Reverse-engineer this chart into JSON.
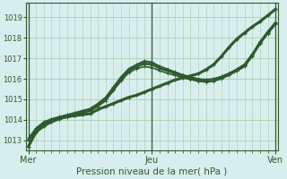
{
  "bg_color": "#d8eeee",
  "grid_color": "#aaccaa",
  "line_color": "#2d5a2d",
  "title": "Pression niveau de la mer( hPa )",
  "xlabel_day_labels": [
    "Mer",
    "Jeu",
    "Ven"
  ],
  "xlabel_day_positions": [
    0,
    48,
    96
  ],
  "xlim": [
    -1,
    97
  ],
  "ylim": [
    1012.5,
    1019.7
  ],
  "yticks": [
    1013,
    1014,
    1015,
    1016,
    1017,
    1018,
    1019
  ],
  "series": [
    {
      "x": [
        0,
        3,
        6,
        9,
        12,
        15,
        18,
        21,
        24,
        27,
        30,
        33,
        36,
        39,
        42,
        45,
        48,
        51,
        54,
        57,
        60,
        63,
        66,
        69,
        72,
        75,
        78,
        81,
        84,
        87,
        90,
        93,
        96
      ],
      "y": [
        1012.7,
        1013.4,
        1013.7,
        1013.9,
        1014.05,
        1014.15,
        1014.2,
        1014.25,
        1014.3,
        1014.5,
        1014.65,
        1014.8,
        1014.95,
        1015.1,
        1015.2,
        1015.35,
        1015.5,
        1015.65,
        1015.8,
        1015.95,
        1016.05,
        1016.15,
        1016.25,
        1016.45,
        1016.7,
        1017.1,
        1017.55,
        1017.95,
        1018.25,
        1018.55,
        1018.8,
        1019.1,
        1019.4
      ],
      "lw": 2.2,
      "marker": true
    },
    {
      "x": [
        0,
        3,
        6,
        9,
        12,
        15,
        18,
        21,
        24,
        27,
        30,
        33,
        36,
        39,
        42,
        45,
        48,
        51,
        54,
        57,
        60,
        63,
        66,
        69,
        72,
        75,
        78,
        81,
        84,
        87,
        90,
        93,
        96
      ],
      "y": [
        1013.0,
        1013.55,
        1013.85,
        1014.0,
        1014.1,
        1014.2,
        1014.3,
        1014.4,
        1014.5,
        1014.75,
        1015.05,
        1015.55,
        1016.05,
        1016.45,
        1016.65,
        1016.8,
        1016.75,
        1016.55,
        1016.42,
        1016.3,
        1016.18,
        1016.08,
        1015.98,
        1015.95,
        1016.0,
        1016.1,
        1016.25,
        1016.45,
        1016.7,
        1017.2,
        1017.8,
        1018.3,
        1018.75
      ],
      "lw": 1.2,
      "marker": true
    },
    {
      "x": [
        0,
        3,
        6,
        9,
        12,
        15,
        18,
        21,
        24,
        27,
        30,
        33,
        36,
        39,
        42,
        45,
        48,
        51,
        54,
        57,
        60,
        63,
        66,
        69,
        72,
        75,
        78,
        81,
        84,
        87,
        90,
        93,
        96
      ],
      "y": [
        1013.1,
        1013.6,
        1013.9,
        1014.05,
        1014.15,
        1014.25,
        1014.35,
        1014.45,
        1014.55,
        1014.8,
        1015.1,
        1015.6,
        1016.1,
        1016.5,
        1016.7,
        1016.88,
        1016.82,
        1016.62,
        1016.48,
        1016.34,
        1016.2,
        1016.1,
        1016.0,
        1015.97,
        1016.0,
        1016.12,
        1016.28,
        1016.48,
        1016.72,
        1017.22,
        1017.82,
        1018.32,
        1018.77
      ],
      "lw": 1.2,
      "marker": true
    },
    {
      "x": [
        0,
        3,
        6,
        9,
        12,
        15,
        18,
        21,
        24,
        27,
        30,
        33,
        36,
        39,
        42,
        45,
        48,
        51,
        54,
        57,
        60,
        63,
        66,
        69,
        72,
        75,
        78,
        81,
        84,
        87,
        90,
        93,
        96
      ],
      "y": [
        1013.05,
        1013.5,
        1013.8,
        1013.95,
        1014.08,
        1014.18,
        1014.28,
        1014.38,
        1014.48,
        1014.72,
        1015.0,
        1015.48,
        1015.98,
        1016.38,
        1016.58,
        1016.72,
        1016.68,
        1016.5,
        1016.38,
        1016.25,
        1016.12,
        1016.02,
        1015.92,
        1015.88,
        1015.92,
        1016.05,
        1016.22,
        1016.42,
        1016.65,
        1017.15,
        1017.75,
        1018.25,
        1018.7
      ],
      "lw": 1.2,
      "marker": true
    },
    {
      "x": [
        0,
        3,
        6,
        9,
        12,
        15,
        18,
        21,
        24,
        27,
        30,
        33,
        36,
        39,
        42,
        45,
        48,
        51,
        54,
        57,
        60,
        63,
        66,
        69,
        72,
        75,
        78,
        81,
        84,
        87,
        90,
        93,
        96
      ],
      "y": [
        1013.0,
        1013.45,
        1013.75,
        1013.92,
        1014.03,
        1014.13,
        1014.22,
        1014.33,
        1014.43,
        1014.65,
        1014.93,
        1015.42,
        1015.9,
        1016.3,
        1016.5,
        1016.6,
        1016.55,
        1016.4,
        1016.28,
        1016.17,
        1016.05,
        1015.97,
        1015.88,
        1015.85,
        1015.88,
        1016.0,
        1016.18,
        1016.38,
        1016.6,
        1017.1,
        1017.7,
        1018.2,
        1018.65
      ],
      "lw": 1.2,
      "marker": true
    }
  ]
}
